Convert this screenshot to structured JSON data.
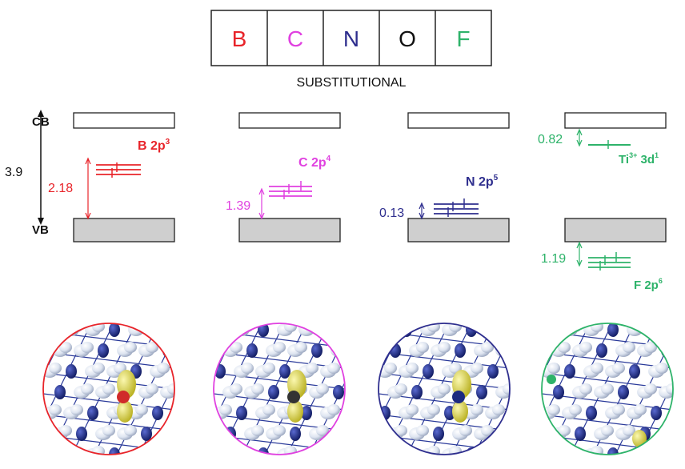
{
  "periodic_row": {
    "elements": [
      {
        "symbol": "B",
        "color": "#e8242a"
      },
      {
        "symbol": "C",
        "color": "#e040e0"
      },
      {
        "symbol": "N",
        "color": "#2e2e8e"
      },
      {
        "symbol": "O",
        "color": "#111111"
      },
      {
        "symbol": "F",
        "color": "#2eb36a"
      }
    ],
    "caption": "SUBSTITUTIONAL"
  },
  "axis": {
    "cb_label": "CB",
    "vb_label": "VB",
    "gap_value": "3.9"
  },
  "panels": [
    {
      "id": "B",
      "color": "#e8242a",
      "level_label_base": "B 2p",
      "level_label_sup": "3",
      "gap_value": "2.18"
    },
    {
      "id": "C",
      "color": "#e040e0",
      "level_label_base": "C 2p",
      "level_label_sup": "4",
      "gap_value": "1.39"
    },
    {
      "id": "N",
      "color": "#2e2e8e",
      "level_label_base": "N 2p",
      "level_label_sup": "5",
      "gap_value": "0.13"
    },
    {
      "id": "F",
      "color": "#2eb36a",
      "upper_label_base": "Ti",
      "upper_label_charge": "3+",
      "upper_label_orbital": " 3d",
      "upper_label_sup": "1",
      "upper_gap_value": "0.82",
      "lower_label_base": "F 2p",
      "lower_label_sup": "6",
      "lower_gap_value": "1.19"
    }
  ],
  "colors": {
    "band_fill_vb": "#cfcfcf",
    "band_stroke": "#222222",
    "atom_light": "#dde4f0",
    "atom_dark": "#1c2a80",
    "orbital": "#e6e04a"
  }
}
